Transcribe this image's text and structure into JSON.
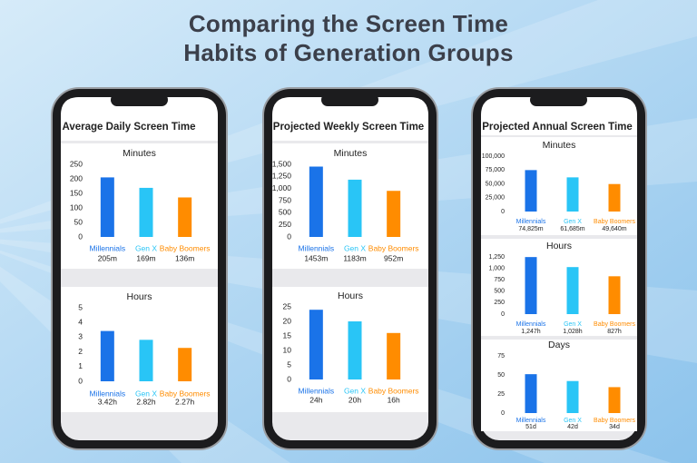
{
  "title": "Comparing the Screen Time Habits of Generation Groups",
  "phones": [
    {
      "heading": "Average Daily Screen Time"
    },
    {
      "heading": "Projected Weekly Screen Time"
    },
    {
      "heading": "Projected Annual Screen Time"
    }
  ],
  "chart_data": [
    {
      "type": "bar",
      "title": "Minutes",
      "categories": [
        "Millennials",
        "Gen X",
        "Baby Boomers"
      ],
      "values": [
        205,
        169,
        136
      ],
      "value_labels": [
        "205m",
        "169m",
        "136m"
      ],
      "colors": [
        "#1a73e8",
        "#29c5f6",
        "#ff8c00"
      ],
      "ylim": [
        0,
        250
      ],
      "yticks": [
        0,
        50,
        100,
        150,
        200,
        250
      ]
    },
    {
      "type": "bar",
      "title": "Hours",
      "categories": [
        "Millennials",
        "Gen X",
        "Baby Boomers"
      ],
      "values": [
        3.42,
        2.82,
        2.27
      ],
      "value_labels": [
        "3.42h",
        "2.82h",
        "2.27h"
      ],
      "colors": [
        "#1a73e8",
        "#29c5f6",
        "#ff8c00"
      ],
      "ylim": [
        0,
        5
      ],
      "yticks": [
        0,
        1,
        2,
        3,
        4,
        5
      ]
    },
    {
      "type": "bar",
      "title": "Minutes",
      "categories": [
        "Millennials",
        "Gen X",
        "Baby Boomers"
      ],
      "values": [
        1453,
        1183,
        952
      ],
      "value_labels": [
        "1453m",
        "1183m",
        "952m"
      ],
      "colors": [
        "#1a73e8",
        "#29c5f6",
        "#ff8c00"
      ],
      "ylim": [
        0,
        1500
      ],
      "yticks": [
        0,
        250,
        500,
        750,
        {
          "value": 1000,
          "label": "1,000"
        },
        {
          "value": 1250,
          "label": "1,250"
        },
        {
          "value": 1500,
          "label": "1,500"
        }
      ]
    },
    {
      "type": "bar",
      "title": "Hours",
      "categories": [
        "Millennials",
        "Gen X",
        "Baby Boomers"
      ],
      "values": [
        24,
        20,
        16
      ],
      "value_labels": [
        "24h",
        "20h",
        "16h"
      ],
      "colors": [
        "#1a73e8",
        "#29c5f6",
        "#ff8c00"
      ],
      "ylim": [
        0,
        25
      ],
      "yticks": [
        0,
        5,
        10,
        15,
        20,
        25
      ]
    },
    {
      "type": "bar",
      "title": "Minutes",
      "categories": [
        "Millennials",
        "Gen X",
        "Baby Boomers"
      ],
      "values": [
        74825,
        61685,
        49640
      ],
      "value_labels": [
        "74,825m",
        "61,685m",
        "49,640m"
      ],
      "colors": [
        "#1a73e8",
        "#29c5f6",
        "#ff8c00"
      ],
      "ylim": [
        0,
        100000
      ],
      "yticks": [
        0,
        {
          "value": 25000,
          "label": "25,000"
        },
        {
          "value": 50000,
          "label": "50,000"
        },
        {
          "value": 75000,
          "label": "75,000"
        },
        {
          "value": 100000,
          "label": "100,000"
        }
      ]
    },
    {
      "type": "bar",
      "title": "Hours",
      "categories": [
        "Millennials",
        "Gen X",
        "Baby Boomers"
      ],
      "values": [
        1247,
        1028,
        827
      ],
      "value_labels": [
        "1,247h",
        "1,028h",
        "827h"
      ],
      "colors": [
        "#1a73e8",
        "#29c5f6",
        "#ff8c00"
      ],
      "ylim": [
        0,
        1250
      ],
      "yticks": [
        0,
        250,
        500,
        750,
        {
          "value": 1000,
          "label": "1,000"
        },
        {
          "value": 1250,
          "label": "1,250"
        }
      ]
    },
    {
      "type": "bar",
      "title": "Days",
      "categories": [
        "Millennials",
        "Gen X",
        "Baby Boomers"
      ],
      "values": [
        51,
        42,
        34
      ],
      "value_labels": [
        "51d",
        "42d",
        "34d"
      ],
      "colors": [
        "#1a73e8",
        "#29c5f6",
        "#ff8c00"
      ],
      "ylim": [
        0,
        75
      ],
      "yticks": [
        0,
        25,
        50,
        75
      ]
    }
  ]
}
